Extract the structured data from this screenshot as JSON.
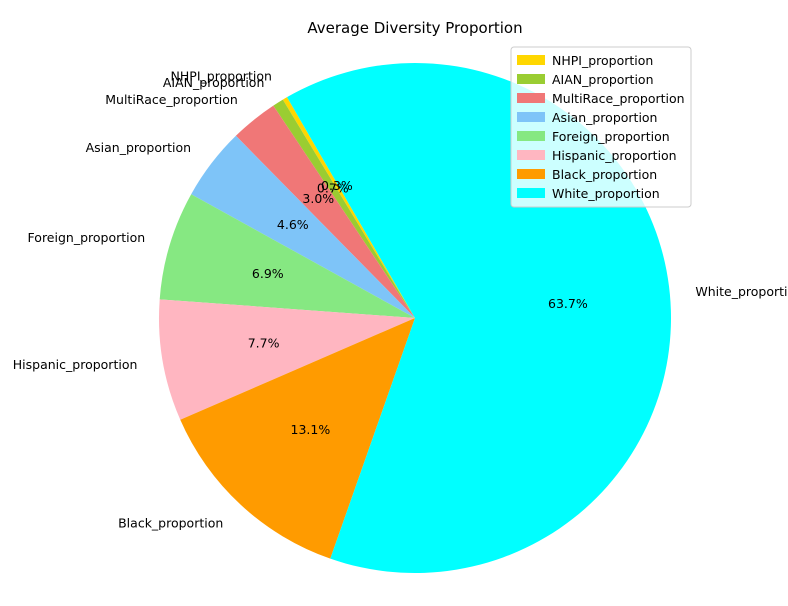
{
  "chart_data": {
    "type": "pie",
    "title": "Average Diversity Proportion",
    "slices": [
      {
        "label": "NHPI_proportion",
        "value": 0.3,
        "pct_label": "0.3%",
        "color": "#ffd700"
      },
      {
        "label": "AIAN_proportion",
        "value": 0.7,
        "pct_label": "0.7%",
        "color": "#9acd32"
      },
      {
        "label": "MultiRace_proportion",
        "value": 3.0,
        "pct_label": "3.0%",
        "color": "#f07777"
      },
      {
        "label": "Asian_proportion",
        "value": 4.6,
        "pct_label": "4.6%",
        "color": "#7ec4f8"
      },
      {
        "label": "Foreign_proportion",
        "value": 6.9,
        "pct_label": "6.9%",
        "color": "#86e882"
      },
      {
        "label": "Hispanic_proportion",
        "value": 7.7,
        "pct_label": "7.7%",
        "color": "#ffb6c1"
      },
      {
        "label": "Black_proportion",
        "value": 13.1,
        "pct_label": "13.1%",
        "color": "#ff9b00"
      },
      {
        "label": "White_proportion",
        "value": 63.7,
        "pct_label": "63.7%",
        "color": "#00ffff"
      }
    ],
    "start_angle_deg": 120,
    "direction": "counterclockwise",
    "legend_position": "top-right"
  }
}
